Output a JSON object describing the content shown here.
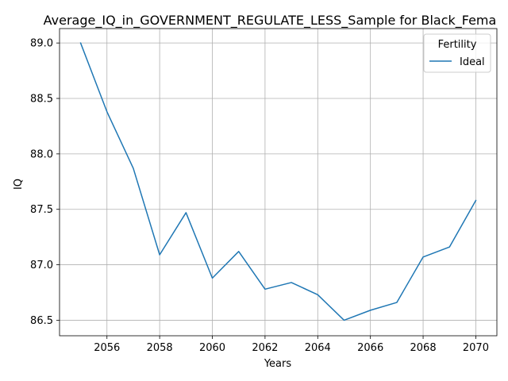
{
  "chart_data": {
    "type": "line",
    "title": "Average_IQ_in_GOVERNMENT_REGULATE_LESS_Sample for Black_Fema",
    "xlabel": "Years",
    "ylabel": "IQ",
    "xlim": [
      2054.2,
      2070.8
    ],
    "ylim": [
      86.36,
      89.13
    ],
    "x_ticks": [
      2056,
      2058,
      2060,
      2062,
      2064,
      2066,
      2068,
      2070
    ],
    "x_tick_labels": [
      "2056",
      "2058",
      "2060",
      "2062",
      "2064",
      "2066",
      "2068",
      "2070"
    ],
    "y_ticks": [
      86.5,
      87.0,
      87.5,
      88.0,
      88.5,
      89.0
    ],
    "y_tick_labels": [
      "86.5",
      "87.0",
      "87.5",
      "88.0",
      "88.5",
      "89.0"
    ],
    "grid": true,
    "legend": {
      "title": "Fertility",
      "placement": "top-right"
    },
    "series": [
      {
        "name": "Ideal",
        "color": "#1f77b4",
        "x": [
          2055,
          2056,
          2057,
          2058,
          2059,
          2060,
          2061,
          2062,
          2063,
          2064,
          2065,
          2066,
          2067,
          2068,
          2069,
          2070
        ],
        "values": [
          89.0,
          88.38,
          87.87,
          87.09,
          87.47,
          86.88,
          87.12,
          86.78,
          86.84,
          86.73,
          86.5,
          86.59,
          86.66,
          87.07,
          87.16,
          87.58
        ]
      }
    ]
  }
}
